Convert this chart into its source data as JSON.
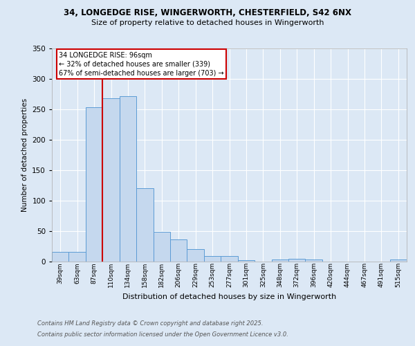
{
  "title_line1": "34, LONGEDGE RISE, WINGERWORTH, CHESTERFIELD, S42 6NX",
  "title_line2": "Size of property relative to detached houses in Wingerworth",
  "xlabel": "Distribution of detached houses by size in Wingerworth",
  "ylabel": "Number of detached properties",
  "categories": [
    "39sqm",
    "63sqm",
    "87sqm",
    "110sqm",
    "134sqm",
    "158sqm",
    "182sqm",
    "206sqm",
    "229sqm",
    "253sqm",
    "277sqm",
    "301sqm",
    "325sqm",
    "348sqm",
    "372sqm",
    "396sqm",
    "420sqm",
    "444sqm",
    "467sqm",
    "491sqm",
    "515sqm"
  ],
  "values": [
    15,
    15,
    253,
    268,
    272,
    120,
    48,
    36,
    20,
    9,
    9,
    2,
    0,
    3,
    4,
    3,
    0,
    0,
    0,
    0,
    3
  ],
  "bar_color": "#c5d8ee",
  "bar_edge_color": "#5b9bd5",
  "bar_width": 1.0,
  "red_line_x": 2.5,
  "annotation_line1": "34 LONGEDGE RISE: 96sqm",
  "annotation_line2": "← 32% of detached houses are smaller (339)",
  "annotation_line3": "67% of semi-detached houses are larger (703) →",
  "annotation_box_color": "#ffffff",
  "annotation_box_edge": "#cc0000",
  "ylim": [
    0,
    350
  ],
  "yticks": [
    0,
    50,
    100,
    150,
    200,
    250,
    300,
    350
  ],
  "footer_line1": "Contains HM Land Registry data © Crown copyright and database right 2025.",
  "footer_line2": "Contains public sector information licensed under the Open Government Licence v3.0.",
  "background_color": "#dce8f5",
  "plot_background": "#dce8f5",
  "grid_color": "#ffffff",
  "red_line_color": "#cc0000",
  "fig_width": 6.0,
  "fig_height": 5.0,
  "fig_dpi": 100
}
